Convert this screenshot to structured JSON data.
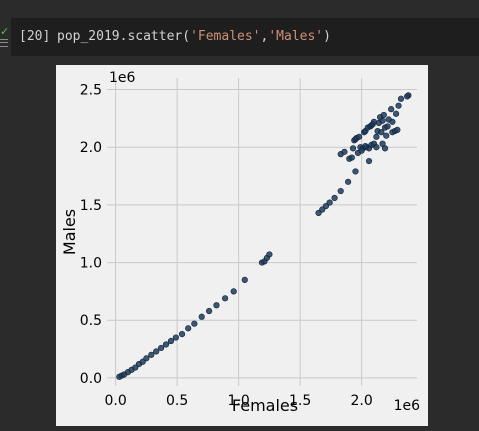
{
  "cell": {
    "prompt": "[20]",
    "code_call": "pop_2019.scatter(",
    "code_arg1": "'Females'",
    "code_sep": ",",
    "code_arg2": "'Males'",
    "code_close": ")"
  },
  "colors": {
    "page_bg": "#2b2b2b",
    "code_bg": "#1e1e1e",
    "string": "#ce9178",
    "plot_bg": "#f0f0f0",
    "marker": "#1f3b5a",
    "status_ok": "#5fb85f"
  },
  "icons": [
    "check-icon",
    "menu-icon"
  ],
  "chart_data": {
    "type": "scatter",
    "xlabel": "Females",
    "ylabel": "Males",
    "x_offset_text": "1e6",
    "y_offset_text": "1e6",
    "xlim": [
      -0.07,
      2.45
    ],
    "ylim": [
      -0.07,
      2.6
    ],
    "x_ticks": [
      0.0,
      0.5,
      1.0,
      1.5,
      2.0
    ],
    "x_tick_labels": [
      "0.0",
      "0.5",
      "1.0",
      "1.5",
      "2.0"
    ],
    "y_ticks": [
      0.0,
      0.5,
      1.0,
      1.5,
      2.0,
      2.5
    ],
    "y_tick_labels": [
      "0.0",
      "0.5",
      "1.0",
      "1.5",
      "2.0",
      "2.5"
    ],
    "grid": true,
    "points": [
      [
        0.03,
        0.01
      ],
      [
        0.05,
        0.02
      ],
      [
        0.07,
        0.03
      ],
      [
        0.1,
        0.05
      ],
      [
        0.13,
        0.07
      ],
      [
        0.16,
        0.09
      ],
      [
        0.19,
        0.12
      ],
      [
        0.22,
        0.14
      ],
      [
        0.25,
        0.17
      ],
      [
        0.29,
        0.2
      ],
      [
        0.33,
        0.23
      ],
      [
        0.37,
        0.26
      ],
      [
        0.41,
        0.29
      ],
      [
        0.45,
        0.32
      ],
      [
        0.49,
        0.35
      ],
      [
        0.54,
        0.38
      ],
      [
        0.59,
        0.43
      ],
      [
        0.64,
        0.47
      ],
      [
        0.7,
        0.53
      ],
      [
        0.76,
        0.58
      ],
      [
        0.82,
        0.63
      ],
      [
        0.89,
        0.69
      ],
      [
        0.96,
        0.75
      ],
      [
        1.05,
        0.85
      ],
      [
        1.19,
        1.0
      ],
      [
        1.21,
        1.01
      ],
      [
        1.23,
        1.04
      ],
      [
        1.25,
        1.07
      ],
      [
        1.65,
        1.43
      ],
      [
        1.68,
        1.46
      ],
      [
        1.71,
        1.49
      ],
      [
        1.74,
        1.52
      ],
      [
        1.78,
        1.56
      ],
      [
        1.83,
        1.62
      ],
      [
        1.83,
        1.94
      ],
      [
        1.86,
        1.96
      ],
      [
        1.89,
        1.7
      ],
      [
        1.9,
        1.9
      ],
      [
        1.92,
        1.91
      ],
      [
        1.93,
        1.99
      ],
      [
        1.94,
        2.06
      ],
      [
        1.95,
        2.07
      ],
      [
        1.96,
        2.08
      ],
      [
        1.95,
        1.79
      ],
      [
        1.97,
        1.95
      ],
      [
        1.98,
        2.09
      ],
      [
        1.99,
        2.0
      ],
      [
        2.01,
        1.99
      ],
      [
        2.02,
        2.13
      ],
      [
        2.03,
        2.14
      ],
      [
        2.04,
        2.0
      ],
      [
        2.05,
        2.17
      ],
      [
        2.06,
        1.88
      ],
      [
        2.07,
        2.18
      ],
      [
        2.08,
        2.19
      ],
      [
        2.09,
        2.2
      ],
      [
        2.1,
        2.22
      ],
      [
        2.06,
        1.99
      ],
      [
        2.08,
        2.02
      ],
      [
        2.1,
        2.03
      ],
      [
        2.12,
        2.09
      ],
      [
        2.13,
        2.14
      ],
      [
        2.14,
        2.21
      ],
      [
        2.15,
        2.26
      ],
      [
        2.16,
        2.13
      ],
      [
        2.17,
        2.23
      ],
      [
        2.17,
        2.03
      ],
      [
        2.18,
        2.28
      ],
      [
        2.19,
        2.17
      ],
      [
        2.19,
        1.99
      ],
      [
        2.2,
        2.1
      ],
      [
        2.21,
        2.18
      ],
      [
        2.22,
        2.24
      ],
      [
        2.24,
        2.33
      ],
      [
        2.25,
        2.22
      ],
      [
        2.25,
        2.13
      ],
      [
        2.27,
        2.14
      ],
      [
        2.28,
        2.29
      ],
      [
        2.29,
        2.15
      ],
      [
        2.3,
        2.36
      ],
      [
        2.32,
        2.42
      ],
      [
        2.38,
        2.45
      ],
      [
        2.37,
        2.44
      ],
      [
        2.12,
        2.0
      ],
      [
        2.03,
        2.01
      ],
      [
        2.0,
        1.97
      ]
    ]
  }
}
